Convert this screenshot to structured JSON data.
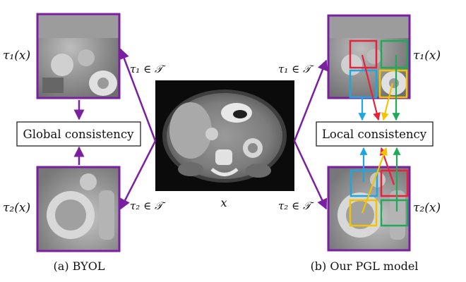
{
  "left": {
    "tau1_x": "τ₁(x)",
    "tau2_x": "τ₂(x)",
    "tau1_in_T": "τ₁ ∈ 𝒯",
    "tau2_in_T": "τ₂ ∈ 𝒯",
    "consistency_label": "Global consistency",
    "caption": "(a) BYOL"
  },
  "center": {
    "input_label": "x"
  },
  "right": {
    "tau1_x": "τ₁(x)",
    "tau2_x": "τ₂(x)",
    "tau1_in_T": "τ₁ ∈ 𝒯",
    "tau2_in_T": "τ₂ ∈ 𝒯",
    "consistency_label": "Local consistency",
    "caption": "(b) Our PGL model"
  },
  "colors": {
    "purple": "#7b1fa2",
    "red": "#e8213a",
    "green": "#1faa59",
    "blue": "#1ea6e0",
    "yellow": "#f2c300"
  }
}
